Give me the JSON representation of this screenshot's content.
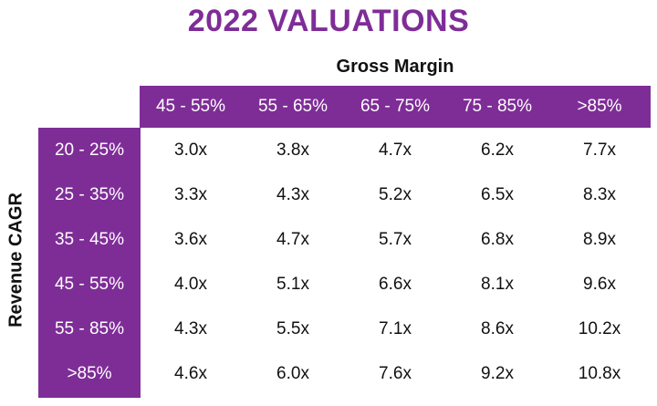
{
  "title": "2022 VALUATIONS",
  "chart_data": {
    "type": "table",
    "title": "2022 VALUATIONS",
    "col_axis_label": "Gross Margin",
    "row_axis_label": "Revenue CAGR",
    "columns": [
      "45 - 55%",
      "55 - 65%",
      "65 - 75%",
      "75 - 85%",
      ">85%"
    ],
    "rows": [
      "20 - 25%",
      "25 - 35%",
      "35 - 45%",
      "45 - 55%",
      "55 - 85%",
      ">85%"
    ],
    "cells": [
      [
        "3.0x",
        "3.8x",
        "4.7x",
        "6.2x",
        "7.7x"
      ],
      [
        "3.3x",
        "4.3x",
        "5.2x",
        "6.5x",
        "8.3x"
      ],
      [
        "3.6x",
        "4.7x",
        "5.7x",
        "6.8x",
        "8.9x"
      ],
      [
        "4.0x",
        "5.1x",
        "6.6x",
        "8.1x",
        "9.6x"
      ],
      [
        "4.3x",
        "5.5x",
        "7.1x",
        "8.6x",
        "10.2x"
      ],
      [
        "4.6x",
        "6.0x",
        "7.6x",
        "9.2x",
        "10.8x"
      ]
    ]
  },
  "colors": {
    "accent": "#7e2d97",
    "header_text": "#ffffff",
    "cell_text": "#111111"
  }
}
